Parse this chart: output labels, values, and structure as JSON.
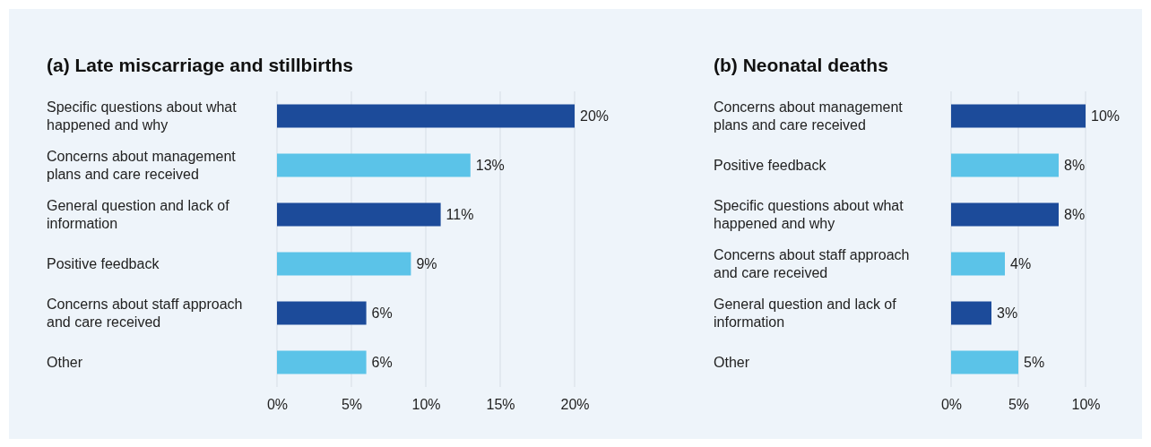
{
  "chart_data": [
    {
      "type": "bar",
      "orientation": "horizontal",
      "title": "(a) Late miscarriage and stillbirths",
      "categories": [
        "Specific questions about what happened and why",
        "Concerns about management plans and care received",
        "General question and lack of information",
        "Positive feedback",
        "Concerns about staff approach and care received",
        "Other"
      ],
      "values": [
        20,
        13,
        11,
        9,
        6,
        6
      ],
      "colors": [
        "#1c4b9a",
        "#5bc3e8",
        "#1c4b9a",
        "#5bc3e8",
        "#1c4b9a",
        "#5bc3e8"
      ],
      "value_labels": [
        "20%",
        "13%",
        "11%",
        "9%",
        "6%",
        "6%"
      ],
      "xlim": [
        0,
        20
      ],
      "xticks": [
        {
          "value": 0,
          "label": "0%"
        },
        {
          "value": 5,
          "label": "5%"
        },
        {
          "value": 10,
          "label": "10%"
        },
        {
          "value": 15,
          "label": "15%"
        },
        {
          "value": 20,
          "label": "20%"
        }
      ],
      "grid": "x"
    },
    {
      "type": "bar",
      "orientation": "horizontal",
      "title": "(b) Neonatal deaths",
      "categories": [
        "Concerns about management plans and care received",
        "Positive feedback",
        "Specific questions about what happened and why",
        "Concerns about staff approach and care received",
        "General question and lack of information",
        "Other"
      ],
      "values": [
        10,
        8,
        8,
        4,
        3,
        5
      ],
      "colors": [
        "#1c4b9a",
        "#5bc3e8",
        "#1c4b9a",
        "#5bc3e8",
        "#1c4b9a",
        "#5bc3e8"
      ],
      "value_labels": [
        "10%",
        "8%",
        "8%",
        "4%",
        "3%",
        "5%"
      ],
      "xlim": [
        0,
        10
      ],
      "xticks": [
        {
          "value": 0,
          "label": "0%"
        },
        {
          "value": 5,
          "label": "5%"
        },
        {
          "value": 10,
          "label": "10%"
        }
      ],
      "grid": "x"
    }
  ]
}
